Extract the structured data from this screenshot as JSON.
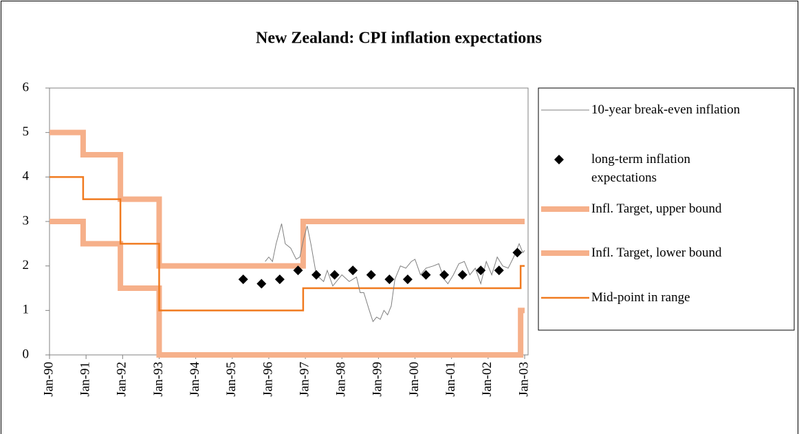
{
  "chart_data": {
    "type": "line",
    "title": "New Zealand: CPI inflation expectations",
    "xlim": [
      1990,
      2003
    ],
    "xticks": [
      {
        "value": 1990,
        "label": "Jan-90"
      },
      {
        "value": 1991,
        "label": "Jan-91"
      },
      {
        "value": 1992,
        "label": "Jan-92"
      },
      {
        "value": 1993,
        "label": "Jan-93"
      },
      {
        "value": 1994,
        "label": "Jan-94"
      },
      {
        "value": 1995,
        "label": "Jan-95"
      },
      {
        "value": 1996,
        "label": "Jan-96"
      },
      {
        "value": 1997,
        "label": "Jan-97"
      },
      {
        "value": 1998,
        "label": "Jan-98"
      },
      {
        "value": 1999,
        "label": "Jan-99"
      },
      {
        "value": 2000,
        "label": "Jan-00"
      },
      {
        "value": 2001,
        "label": "Jan-01"
      },
      {
        "value": 2002,
        "label": "Jan-02"
      },
      {
        "value": 2003,
        "label": "Jan-03"
      }
    ],
    "ylim": [
      0,
      6
    ],
    "yticks": [
      0,
      1,
      2,
      3,
      4,
      5,
      6
    ],
    "grid": false,
    "legend": "right",
    "series": [
      {
        "name": "10-year break-even inflation",
        "color": "#7f7f7f",
        "line_width": 1,
        "marker": "none",
        "x": [
          1995.9,
          1996.0,
          1996.1,
          1996.2,
          1996.35,
          1996.45,
          1996.6,
          1996.75,
          1996.85,
          1996.95,
          1997.05,
          1997.15,
          1997.3,
          1997.5,
          1997.6,
          1997.75,
          1997.9,
          1998.0,
          1998.2,
          1998.4,
          1998.5,
          1998.6,
          1998.75,
          1998.85,
          1998.95,
          1999.05,
          1999.15,
          1999.25,
          1999.35,
          1999.45,
          1999.6,
          1999.75,
          1999.9,
          2000.0,
          2000.15,
          2000.3,
          2000.5,
          2000.65,
          2000.8,
          2000.9,
          2001.05,
          2001.2,
          2001.35,
          2001.5,
          2001.65,
          2001.8,
          2001.95,
          2002.1,
          2002.25,
          2002.4,
          2002.55,
          2002.7,
          2002.85,
          2002.95,
          2003.0
        ],
        "values": [
          2.1,
          2.2,
          2.1,
          2.5,
          2.95,
          2.5,
          2.4,
          2.15,
          2.2,
          2.6,
          2.9,
          2.5,
          1.8,
          1.65,
          1.9,
          1.55,
          1.7,
          1.8,
          1.65,
          1.75,
          1.4,
          1.4,
          1.0,
          0.75,
          0.85,
          0.8,
          1.0,
          0.9,
          1.1,
          1.7,
          2.0,
          1.95,
          2.1,
          2.15,
          1.8,
          1.95,
          2.0,
          2.05,
          1.7,
          1.6,
          1.8,
          2.05,
          2.1,
          1.8,
          1.95,
          1.6,
          2.1,
          1.8,
          2.2,
          2.0,
          1.95,
          2.2,
          2.5,
          2.3,
          2.35
        ]
      },
      {
        "name": "long-term inflation expectations",
        "color": "#000000",
        "line_width": 0,
        "marker": "diamond",
        "x": [
          1995.3,
          1995.8,
          1996.3,
          1996.8,
          1997.3,
          1997.8,
          1998.3,
          1998.8,
          1999.3,
          1999.8,
          2000.3,
          2000.8,
          2001.3,
          2001.8,
          2002.3,
          2002.8
        ],
        "values": [
          1.7,
          1.6,
          1.7,
          1.9,
          1.8,
          1.8,
          1.9,
          1.8,
          1.7,
          1.7,
          1.8,
          1.8,
          1.8,
          1.9,
          1.9,
          2.3
        ]
      },
      {
        "name": "Infl. Target, upper bound",
        "color": "#f6b08a",
        "line_width": 8,
        "marker": "none",
        "x": [
          1990.0,
          1990.92,
          1990.92,
          1991.94,
          1991.94,
          1993.0,
          1993.0,
          1996.94,
          1996.94,
          2003.0
        ],
        "values": [
          5,
          5,
          4.5,
          4.5,
          3.5,
          3.5,
          2,
          2,
          3,
          3
        ]
      },
      {
        "name": "Infl. Target, lower bound",
        "color": "#f6b08a",
        "line_width": 8,
        "marker": "none",
        "x": [
          1990.0,
          1990.92,
          1990.92,
          1991.94,
          1991.94,
          1993.0,
          1993.0,
          2002.89,
          2002.89,
          2003.0
        ],
        "values": [
          3,
          3,
          2.5,
          2.5,
          1.5,
          1.5,
          0,
          0,
          1,
          1
        ]
      },
      {
        "name": "Mid-point in range",
        "color": "#f07a1f",
        "line_width": 2.5,
        "marker": "none",
        "x": [
          1990.0,
          1990.92,
          1990.92,
          1991.94,
          1991.94,
          1993.0,
          1993.0,
          1996.94,
          1996.94,
          2002.89,
          2002.89,
          2003.0
        ],
        "values": [
          4,
          4,
          3.5,
          3.5,
          2.5,
          2.5,
          1,
          1,
          1.5,
          1.5,
          2,
          2
        ]
      }
    ]
  }
}
